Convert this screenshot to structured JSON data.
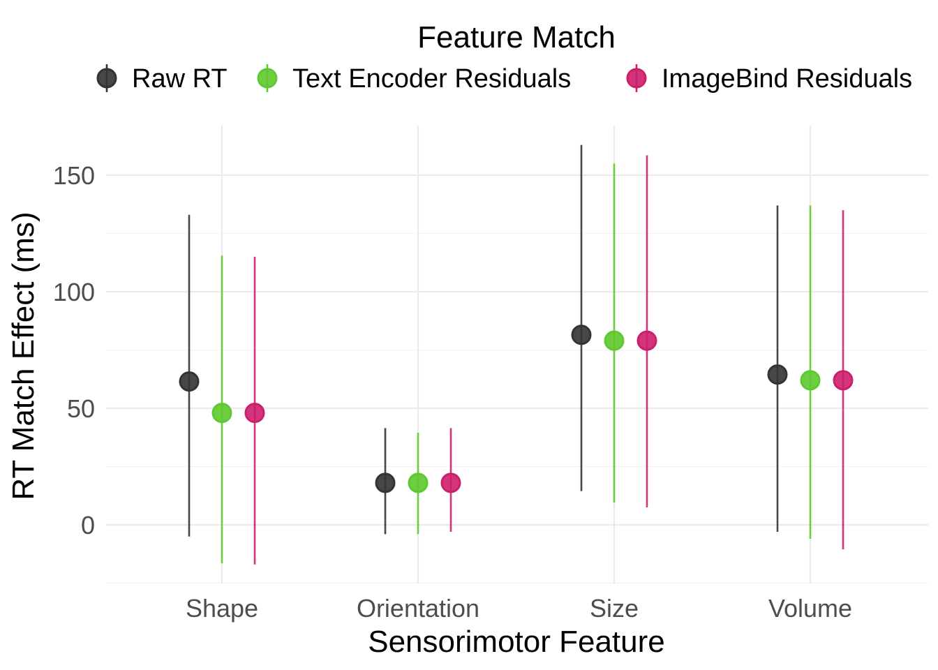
{
  "chart_data": {
    "type": "scatter",
    "title": "",
    "xlabel": "Sensorimotor Feature",
    "ylabel": "RT Match Effect (ms)",
    "categories": [
      "Shape",
      "Orientation",
      "Size",
      "Volume"
    ],
    "ylim": [
      -25,
      172
    ],
    "yticks": [
      0,
      50,
      100,
      150
    ],
    "ytick_labels": [
      "0",
      "50",
      "100",
      "150"
    ],
    "grid": true,
    "legend": {
      "title": "Feature Match",
      "position": "top"
    },
    "series": [
      {
        "name": "Raw RT",
        "color": "#333333",
        "values": [
          61.5,
          18,
          81.5,
          64.5
        ],
        "lower": [
          -5,
          -4,
          14.5,
          -3
        ],
        "upper": [
          133,
          41.5,
          163,
          137
        ]
      },
      {
        "name": "Text Encoder Residuals",
        "color": "#5ec92e",
        "values": [
          48,
          18,
          79,
          62
        ],
        "lower": [
          -16.5,
          -4,
          9.5,
          -6
        ],
        "upper": [
          115.5,
          39.5,
          155,
          137
        ]
      },
      {
        "name": "ImageBind Residuals",
        "color": "#cc1f6b",
        "values": [
          48,
          18,
          79,
          62
        ],
        "lower": [
          -17,
          -3,
          7.5,
          -10.5
        ],
        "upper": [
          115,
          41.5,
          158.5,
          135
        ]
      }
    ]
  }
}
